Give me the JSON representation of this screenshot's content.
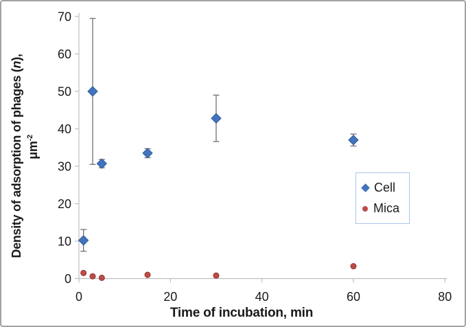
{
  "chart_data": {
    "type": "scatter",
    "title": "",
    "xlabel": "Time of incubation, min",
    "ylabel": "Density of adsorption of phages (n), μm⁻²",
    "ylabel_rich": {
      "line1_prefix": "Density of adsorption of phages (",
      "line1_var": "n",
      "line1_suffix": "),",
      "line2_base": "μm",
      "line2_sup": "-2"
    },
    "xlim": [
      0,
      80
    ],
    "ylim": [
      0,
      70
    ],
    "x_ticks": [
      0,
      20,
      40,
      60,
      80
    ],
    "y_ticks": [
      0,
      10,
      20,
      30,
      40,
      50,
      60,
      70
    ],
    "grid": false,
    "legend_position": "middle-right",
    "series": [
      {
        "name": "Cell",
        "marker": "diamond",
        "color": "#4273bd",
        "marker_stroke": "#2e5b9a",
        "points": [
          {
            "x": 1,
            "y": 10.2,
            "err": 2.9
          },
          {
            "x": 3,
            "y": 50.0,
            "err": 19.5
          },
          {
            "x": 5,
            "y": 30.7,
            "err": 1.1
          },
          {
            "x": 15,
            "y": 33.5,
            "err": 1.2
          },
          {
            "x": 30,
            "y": 42.8,
            "err": 6.2
          },
          {
            "x": 60,
            "y": 37.0,
            "err": 1.6
          }
        ]
      },
      {
        "name": "Mica",
        "marker": "circle",
        "color": "#bf4b48",
        "marker_stroke": "#8e3432",
        "points": [
          {
            "x": 1,
            "y": 1.5
          },
          {
            "x": 3,
            "y": 0.6
          },
          {
            "x": 5,
            "y": 0.2
          },
          {
            "x": 15,
            "y": 1.0
          },
          {
            "x": 30,
            "y": 0.8
          },
          {
            "x": 60,
            "y": 3.3
          }
        ]
      }
    ],
    "style": {
      "error_bar_color": "#707070",
      "axis_color": "#bfbfbf",
      "text_color": "#1a1a1a",
      "legend_border_color": "#a9c6e8"
    }
  }
}
